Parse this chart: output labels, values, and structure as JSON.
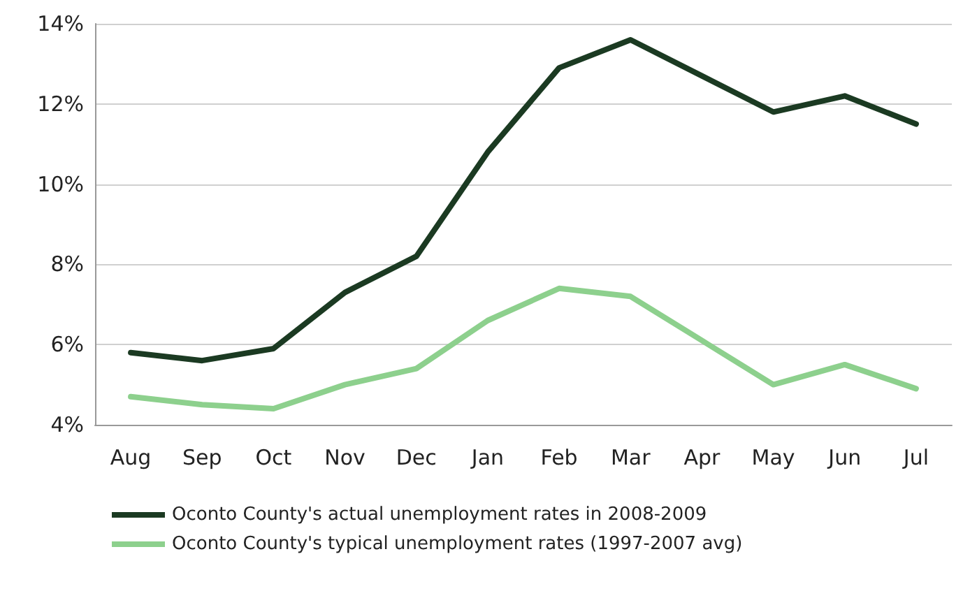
{
  "chart_data": {
    "type": "line",
    "categories": [
      "Aug",
      "Sep",
      "Oct",
      "Nov",
      "Dec",
      "Jan",
      "Feb",
      "Mar",
      "Apr",
      "May",
      "Jun",
      "Jul"
    ],
    "series": [
      {
        "name": "Oconto County's actual unemployment rates in 2008-2009",
        "color": "#1b3a22",
        "values": [
          5.8,
          5.6,
          5.9,
          7.3,
          8.2,
          10.8,
          12.9,
          13.6,
          12.7,
          11.8,
          12.2,
          11.5
        ]
      },
      {
        "name": "Oconto County's typical unemployment rates (1997-2007 avg)",
        "color": "#8dd08d",
        "values": [
          4.7,
          4.5,
          4.4,
          5.0,
          5.4,
          6.6,
          7.4,
          7.2,
          6.1,
          5.0,
          5.5,
          4.9
        ]
      }
    ],
    "ylim": [
      4,
      14
    ],
    "yticks": [
      {
        "value": 4,
        "label": "4%"
      },
      {
        "value": 6,
        "label": "6%"
      },
      {
        "value": 8,
        "label": "8%"
      },
      {
        "value": 10,
        "label": "10%"
      },
      {
        "value": 12,
        "label": "12%"
      },
      {
        "value": 14,
        "label": "14%"
      }
    ],
    "grid": "y",
    "legend": "bottom",
    "marker": "none",
    "line_style": "solid"
  }
}
